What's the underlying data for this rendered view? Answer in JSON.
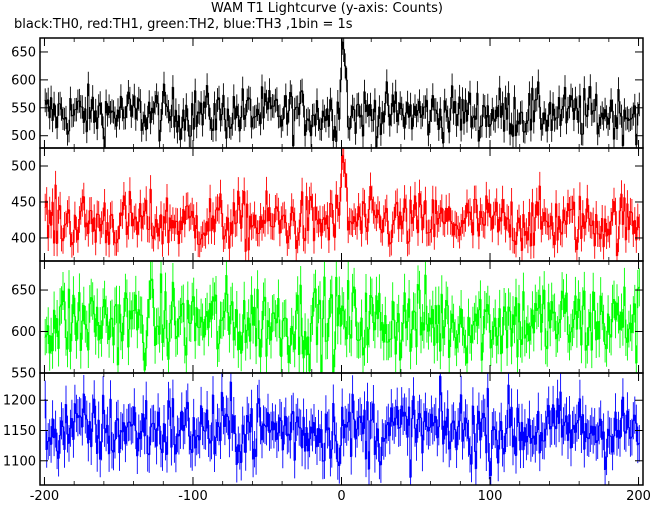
{
  "chart_data": {
    "type": "line",
    "title": "WAM T1 Lightcurve (y-axis: Counts)",
    "subtitle": "black:TH0, red:TH1, green:TH2, blue:TH3 ,1bin = 1s",
    "xlim": [
      -203,
      203
    ],
    "x_ticks": [
      -200,
      -100,
      0,
      100,
      200
    ],
    "x_tick_labels": [
      "-200",
      "-100",
      "0",
      "100",
      "200"
    ],
    "bin_seconds": 1,
    "panels": [
      {
        "name": "TH0",
        "color": "#000000",
        "ylim": [
          478,
          675
        ],
        "y_ticks": [
          500,
          550,
          600,
          650
        ],
        "y_tick_labels": [
          "500",
          "550",
          "600",
          "650"
        ],
        "baseline": 540,
        "noise": 23,
        "peak": [
          {
            "x": 0,
            "y": 668
          },
          {
            "x": 1,
            "y": 655
          },
          {
            "x": 2,
            "y": 625
          },
          {
            "x": 3,
            "y": 600
          },
          {
            "x": -1,
            "y": 600
          }
        ]
      },
      {
        "name": "TH1",
        "color": "#ff0000",
        "ylim": [
          368,
          525
        ],
        "y_ticks": [
          400,
          450,
          500
        ],
        "y_tick_labels": [
          "400",
          "450",
          "500"
        ],
        "baseline": 422,
        "noise": 20,
        "peak": [
          {
            "x": 0,
            "y": 515
          },
          {
            "x": 1,
            "y": 505
          },
          {
            "x": 2,
            "y": 490
          },
          {
            "x": 3,
            "y": 470
          },
          {
            "x": -1,
            "y": 470
          }
        ]
      },
      {
        "name": "TH2",
        "color": "#00ff00",
        "ylim": [
          550,
          685
        ],
        "y_ticks": [
          550,
          600,
          650
        ],
        "y_tick_labels": [
          "550",
          "600",
          "650"
        ],
        "baseline": 612,
        "noise": 25,
        "peak": []
      },
      {
        "name": "TH3",
        "color": "#0000ff",
        "ylim": [
          1060,
          1245
        ],
        "y_ticks": [
          1100,
          1150,
          1200
        ],
        "y_tick_labels": [
          "1100",
          "1150",
          "1200"
        ],
        "baseline": 1152,
        "noise": 30,
        "peak": []
      }
    ]
  }
}
